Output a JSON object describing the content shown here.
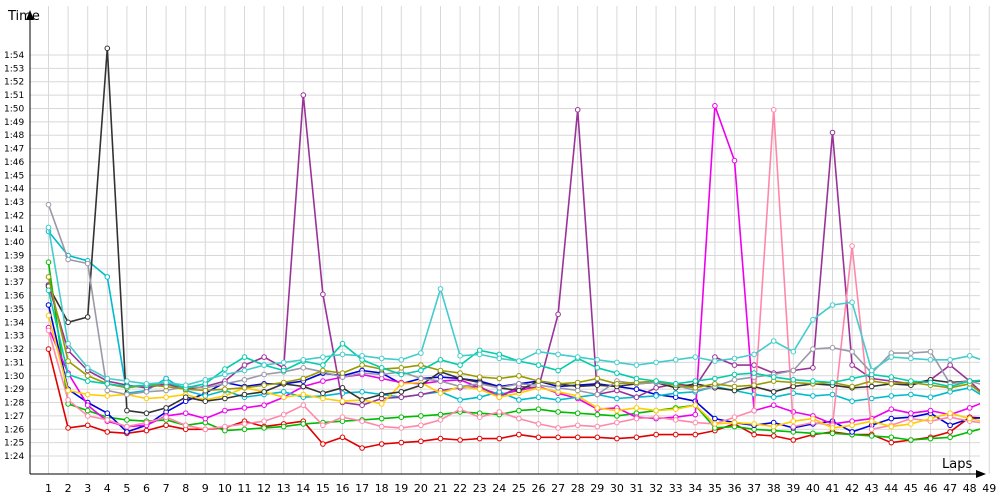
{
  "chart_data": {
    "type": "line",
    "ylabel": "Time",
    "xlabel": "Laps",
    "x": [
      1,
      2,
      3,
      4,
      5,
      6,
      7,
      8,
      9,
      10,
      11,
      12,
      13,
      14,
      15,
      16,
      17,
      18,
      19,
      20,
      21,
      22,
      23,
      24,
      25,
      26,
      27,
      28,
      29,
      30,
      31,
      32,
      33,
      34,
      35,
      36,
      37,
      38,
      39,
      40,
      41,
      42,
      43,
      44,
      45,
      46,
      47,
      48,
      49
    ],
    "ylim": [
      83.3,
      116
    ],
    "y_tick_values": [
      84,
      85,
      86,
      87,
      88,
      89,
      90,
      91,
      92,
      93,
      94,
      95,
      96,
      97,
      98,
      99,
      100,
      101,
      102,
      103,
      104,
      105,
      106,
      107,
      108,
      109,
      110,
      111,
      112,
      113,
      114
    ],
    "y_tick_labels": [
      "1:24",
      "1:25",
      "1:26",
      "1:27",
      "1:28",
      "1:29",
      "1:30",
      "1:31",
      "1:32",
      "1:33",
      "1:34",
      "1:35",
      "1:36",
      "1:37",
      "1:38",
      "1:39",
      "1:40",
      "1:41",
      "1:42",
      "1:43",
      "1:44",
      "1:45",
      "1:46",
      "1:47",
      "1:48",
      "1:49",
      "1:50",
      "1:51",
      "1:52",
      "1:53",
      "1:54"
    ],
    "x_tick_labels": [
      "1",
      "2",
      "3",
      "4",
      "5",
      "6",
      "7",
      "8",
      "9",
      "10",
      "11",
      "12",
      "13",
      "14",
      "15",
      "16",
      "17",
      "18",
      "19",
      "20",
      "21",
      "22",
      "23",
      "24",
      "25",
      "26",
      "27",
      "28",
      "29",
      "30",
      "31",
      "32",
      "33",
      "34",
      "35",
      "36",
      "37",
      "38",
      "39",
      "40",
      "41",
      "42",
      "43",
      "44",
      "45",
      "46",
      "47",
      "48",
      "49"
    ],
    "grid": true,
    "legend": "none",
    "series": [
      {
        "color": "#e00000",
        "values": [
          92,
          86.1,
          86.3,
          85.8,
          85.7,
          85.9,
          86.3,
          86,
          86,
          86.1,
          86.6,
          86.2,
          86.4,
          86.6,
          84.9,
          85.4,
          84.6,
          84.9,
          85,
          85.1,
          85.3,
          85.2,
          85.3,
          85.3,
          85.6,
          85.4,
          85.4,
          85.4,
          85.4,
          85.3,
          85.4,
          85.6,
          85.6,
          85.6,
          85.9,
          86.4,
          85.6,
          85.5,
          85.2,
          85.6,
          85.8,
          85.6,
          85.6,
          85,
          85.2,
          85.4,
          85.8,
          86.9,
          86.8
        ]
      },
      {
        "color": "#00bb00",
        "values": [
          98.5,
          87.9,
          87.4,
          86.9,
          86.7,
          86.6,
          86.7,
          86.3,
          86.5,
          85.9,
          86,
          86.1,
          86.2,
          86.4,
          86.5,
          86.6,
          86.7,
          86.8,
          86.9,
          87,
          87.1,
          87.3,
          87.2,
          87.1,
          87.4,
          87.5,
          87.3,
          87.2,
          87.1,
          87,
          87.2,
          87.4,
          87.6,
          87.8,
          86.1,
          86.2,
          86,
          85.9,
          85.8,
          85.7,
          85.7,
          85.6,
          85.5,
          85.4,
          85.2,
          85.3,
          85.4,
          85.8,
          86.2
        ]
      },
      {
        "color": "#0000dd",
        "values": [
          95.3,
          89,
          88,
          87.2,
          85.8,
          86.3,
          87.3,
          88.1,
          88.7,
          89.5,
          89.2,
          89.4,
          89.4,
          89.6,
          90.2,
          90,
          90.4,
          90.2,
          89.4,
          89.8,
          89.9,
          89.8,
          89.6,
          89.2,
          89.4,
          89.6,
          89.2,
          89.3,
          89.4,
          89.2,
          89,
          88.6,
          88.4,
          88.1,
          86.8,
          86.5,
          86.3,
          86.5,
          86.1,
          86.4,
          86.6,
          85.8,
          86.3,
          86.8,
          86.9,
          87.2,
          86.3,
          86.8,
          86.9
        ]
      },
      {
        "color": "#ee00ee",
        "values": [
          93.6,
          90.2,
          87.8,
          86.6,
          86.2,
          86.3,
          87,
          87.2,
          86.8,
          87.4,
          87.6,
          87.8,
          88.4,
          89.2,
          89.6,
          89.9,
          90.1,
          89.8,
          89.5,
          89.4,
          89.6,
          89.7,
          89.1,
          88.6,
          88.9,
          89.2,
          88.7,
          88.3,
          87.5,
          87.6,
          86.9,
          86.8,
          86.9,
          87.1,
          110.2,
          106.1,
          87.4,
          87.8,
          87.3,
          87,
          86.4,
          86.6,
          86.8,
          87.5,
          87.2,
          87.4,
          87.1,
          87.6,
          88.2
        ]
      },
      {
        "color": "#00bbcc",
        "values": [
          100.8,
          99,
          98.6,
          97.4,
          88.7,
          88.9,
          89.8,
          88.9,
          88.5,
          88.9,
          88.4,
          88.6,
          88.8,
          88.4,
          88.5,
          88.7,
          88.8,
          88.6,
          88.4,
          88.6,
          88.8,
          88.2,
          88.4,
          88.8,
          88.2,
          88.4,
          88.2,
          88.4,
          88.6,
          88.3,
          88.4,
          88.5,
          88.7,
          88.8,
          89.2,
          88.9,
          88.6,
          88.4,
          88.7,
          88.5,
          88.6,
          88.1,
          88.3,
          88.5,
          88.6,
          88.4,
          88.8,
          89.1,
          88.2
        ]
      },
      {
        "color": "#993399",
        "values": [
          96.8,
          91.9,
          90.4,
          89.6,
          89.3,
          89.1,
          89.4,
          89,
          89.2,
          89.6,
          90.8,
          91.4,
          90.6,
          111,
          96.1,
          88,
          87.8,
          88.3,
          88.4,
          88.6,
          88.9,
          89.1,
          89.2,
          88.4,
          89.2,
          89.1,
          94.6,
          109.9,
          88.6,
          88.9,
          88.4,
          89.1,
          89.4,
          89.2,
          91.4,
          90.8,
          90.8,
          90.2,
          90.4,
          90.6,
          108.2,
          90.8,
          89.8,
          89.6,
          89.4,
          89.7,
          90.8,
          89.6,
          88.2
        ]
      },
      {
        "color": "#ff88aa",
        "values": [
          93.4,
          88.2,
          87,
          86.7,
          86.2,
          86.5,
          86.9,
          86.3,
          86,
          86.2,
          86.4,
          86.6,
          87.1,
          87.8,
          86.3,
          86.9,
          86.6,
          86.2,
          86.1,
          86.3,
          86.7,
          87.5,
          86.9,
          87.3,
          86.8,
          86.4,
          86.1,
          86.3,
          86.2,
          86.5,
          86.8,
          86.9,
          86.7,
          86.5,
          86.4,
          86.9,
          87.4,
          109.9,
          86.2,
          86.5,
          86.3,
          99.7,
          86,
          86.3,
          86.8,
          86.6,
          86.9,
          86.6,
          86.4
        ]
      },
      {
        "color": "#ffcc00",
        "values": [
          94.5,
          88.9,
          88.6,
          88.5,
          88.6,
          88.3,
          88.4,
          88.6,
          88.2,
          88.5,
          89.1,
          88.8,
          88.4,
          88.6,
          88.3,
          88.1,
          88.2,
          87.9,
          89.4,
          89.5,
          88.7,
          89.2,
          89,
          88.4,
          88.7,
          89.1,
          88.8,
          88.5,
          87.6,
          87.4,
          87.6,
          87.4,
          87.5,
          87.8,
          86.4,
          86.5,
          86.4,
          86.2,
          86.6,
          86.8,
          86.1,
          86.3,
          86.6,
          86.2,
          86.4,
          86.8,
          87.2,
          86.8,
          86.5
        ]
      },
      {
        "color": "#333333",
        "values": [
          96.7,
          94,
          94.4,
          114.5,
          87.4,
          87.2,
          87.6,
          88.4,
          88.1,
          88.3,
          88.6,
          88.8,
          89.4,
          89.2,
          88.7,
          89.1,
          88.2,
          88.6,
          88.8,
          89.3,
          90.3,
          89.8,
          89.5,
          89.1,
          88.9,
          89.6,
          89.4,
          89.2,
          89.3,
          89.2,
          89.4,
          89.5,
          89.1,
          89.4,
          89.1,
          88.9,
          89.2,
          88.8,
          89.2,
          89.4,
          89.3,
          89.1,
          89.2,
          89.4,
          89.3,
          89.7,
          89.5,
          89.6,
          89.6
        ]
      },
      {
        "color": "#9999aa",
        "values": [
          102.8,
          98.7,
          98.4,
          88.9,
          88.6,
          88.8,
          88.9,
          89.2,
          89.1,
          89.4,
          89.7,
          90.1,
          90.3,
          90.6,
          90.3,
          89.9,
          90.2,
          90.1,
          90.3,
          89.8,
          89.6,
          89.2,
          89.4,
          89.1,
          89.4,
          89.3,
          89.1,
          88.9,
          88.6,
          89.6,
          89.4,
          89.5,
          89.3,
          88.9,
          89.2,
          89.7,
          89.9,
          90.1,
          90.4,
          92,
          92.1,
          91.8,
          90.2,
          91.7,
          91.7,
          91.8,
          89.4,
          89.6,
          89.2
        ]
      },
      {
        "color": "#999900",
        "values": [
          97.4,
          91.1,
          90,
          89.4,
          89.1,
          89.3,
          89.2,
          89,
          88.9,
          89,
          89.1,
          89.3,
          89.5,
          89.8,
          90.4,
          90.2,
          90.8,
          90.5,
          90.6,
          90.8,
          90.4,
          90.2,
          89.9,
          89.8,
          90,
          89.6,
          89.4,
          89.5,
          89.8,
          89.4,
          89.5,
          89.6,
          89.3,
          89.1,
          89.4,
          89.2,
          89.3,
          89.6,
          89.5,
          89.4,
          89.5,
          89.2,
          89.6,
          89.4,
          89.5,
          89.3,
          89.1,
          89.4,
          88.2
        ]
      },
      {
        "color": "#00ccaa",
        "values": [
          96.4,
          90.1,
          89.6,
          89.4,
          89.2,
          89.3,
          89.5,
          89.1,
          89.4,
          90.5,
          91.4,
          90.8,
          90.4,
          91.1,
          90.8,
          92.4,
          91.2,
          90.6,
          90.1,
          90.4,
          91.2,
          90.8,
          91.9,
          91.6,
          91.1,
          90.8,
          90.4,
          91.3,
          90.6,
          90.2,
          89.8,
          89.6,
          89.4,
          89.6,
          89.8,
          90.1,
          90.2,
          89.9,
          89.7,
          89.6,
          89.5,
          89.8,
          90.1,
          89.9,
          89.6,
          89.5,
          89.2,
          89.6,
          89.7
        ]
      },
      {
        "color": "#44cccc",
        "values": [
          101.1,
          92.4,
          90.6,
          89.8,
          89.6,
          89.4,
          89.5,
          89.3,
          89.7,
          90.1,
          90.4,
          90.8,
          91,
          91.2,
          91.4,
          91.6,
          91.5,
          91.3,
          91.2,
          91.7,
          96.5,
          91.5,
          91.6,
          91.3,
          91.1,
          91.8,
          91.6,
          91.4,
          91.2,
          91,
          90.8,
          91,
          91.2,
          91.4,
          91.1,
          91.3,
          91.6,
          92.6,
          91.8,
          94.2,
          95.3,
          95.5,
          90.4,
          91.4,
          91.3,
          91.2,
          91.2,
          91.5,
          91
        ]
      }
    ]
  }
}
